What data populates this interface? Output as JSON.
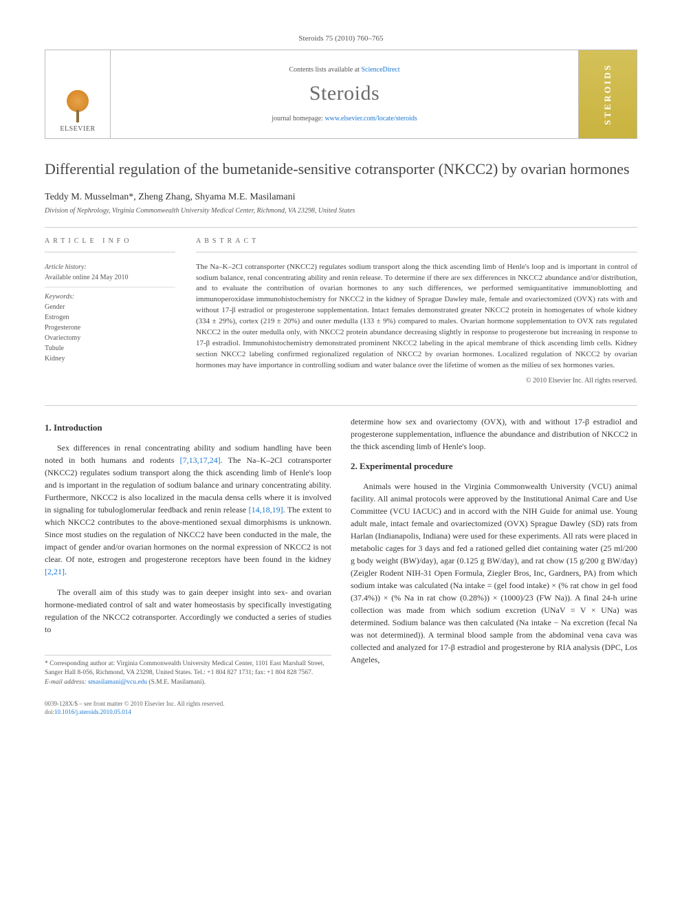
{
  "journal_ref": "Steroids 75 (2010) 760–765",
  "header": {
    "publisher": "ELSEVIER",
    "contents_prefix": "Contents lists available at ",
    "contents_link": "ScienceDirect",
    "journal_name": "Steroids",
    "homepage_prefix": "journal homepage: ",
    "homepage_url": "www.elsevier.com/locate/steroids",
    "cover_text": "STEROIDS"
  },
  "title": "Differential regulation of the bumetanide-sensitive cotransporter (NKCC2) by ovarian hormones",
  "authors": "Teddy M. Musselman*, Zheng Zhang, Shyama M.E. Masilamani",
  "affiliation": "Division of Nephrology, Virginia Commonwealth University Medical Center, Richmond, VA 23298, United States",
  "article_info": {
    "label": "ARTICLE INFO",
    "history_label": "Article history:",
    "history_text": "Available online 24 May 2010",
    "keywords_label": "Keywords:",
    "keywords": [
      "Gender",
      "Estrogen",
      "Progesterone",
      "Ovariectomy",
      "Tubule",
      "Kidney"
    ]
  },
  "abstract": {
    "label": "ABSTRACT",
    "text": "The Na–K–2Cl cotransporter (NKCC2) regulates sodium transport along the thick ascending limb of Henle's loop and is important in control of sodium balance, renal concentrating ability and renin release. To determine if there are sex differences in NKCC2 abundance and/or distribution, and to evaluate the contribution of ovarian hormones to any such differences, we performed semiquantitative immunoblotting and immunoperoxidase immunohistochemistry for NKCC2 in the kidney of Sprague Dawley male, female and ovariectomized (OVX) rats with and without 17-β estradiol or progesterone supplementation. Intact females demonstrated greater NKCC2 protein in homogenates of whole kidney (334 ± 29%), cortex (219 ± 20%) and outer medulla (133 ± 9%) compared to males. Ovarian hormone supplementation to OVX rats regulated NKCC2 in the outer medulla only, with NKCC2 protein abundance decreasing slightly in response to progesterone but increasing in response to 17-β estradiol. Immunohistochemistry demonstrated prominent NKCC2 labeling in the apical membrane of thick ascending limb cells. Kidney section NKCC2 labeling confirmed regionalized regulation of NKCC2 by ovarian hormones. Localized regulation of NKCC2 by ovarian hormones may have importance in controlling sodium and water balance over the lifetime of women as the milieu of sex hormones varies.",
    "copyright": "© 2010 Elsevier Inc. All rights reserved."
  },
  "body": {
    "intro_heading": "1. Introduction",
    "intro_p1_a": "Sex differences in renal concentrating ability and sodium handling have been noted in both humans and rodents ",
    "intro_p1_cite1": "[7,13,17,24]",
    "intro_p1_b": ". The Na–K–2Cl cotransporter (NKCC2) regulates sodium transport along the thick ascending limb of Henle's loop and is important in the regulation of sodium balance and urinary concentrating ability. Furthermore, NKCC2 is also localized in the macula densa cells where it is involved in signaling for tubuloglomerular feedback and renin release ",
    "intro_p1_cite2": "[14,18,19]",
    "intro_p1_c": ". The extent to which NKCC2 contributes to the above-mentioned sexual dimorphisms is unknown. Since most studies on the regulation of NKCC2 have been conducted in the male, the impact of gender and/or ovarian hormones on the normal expression of NKCC2 is not clear. Of note, estrogen and progesterone receptors have been found in the kidney ",
    "intro_p1_cite3": "[2,21]",
    "intro_p1_d": ".",
    "intro_p2": "The overall aim of this study was to gain deeper insight into sex- and ovarian hormone-mediated control of salt and water homeostasis by specifically investigating regulation of the NKCC2 cotransporter. Accordingly we conducted a series of studies to",
    "col2_p1": "determine how sex and ovariectomy (OVX), with and without 17-β estradiol and progesterone supplementation, influence the abundance and distribution of NKCC2 in the thick ascending limb of Henle's loop.",
    "exp_heading": "2. Experimental procedure",
    "exp_p1": "Animals were housed in the Virginia Commonwealth University (VCU) animal facility. All animal protocols were approved by the Institutional Animal Care and Use Committee (VCU IACUC) and in accord with the NIH Guide for animal use. Young adult male, intact female and ovariectomized (OVX) Sprague Dawley (SD) rats from Harlan (Indianapolis, Indiana) were used for these experiments. All rats were placed in metabolic cages for 3 days and fed a rationed gelled diet containing water (25 ml/200 g body weight (BW)/day), agar (0.125 g BW/day), and rat chow (15 g/200 g BW/day) (Zeigler Rodent NIH-31 Open Formula, Ziegler Bros, Inc, Gardners, PA) from which sodium intake was calculated (Na intake = (gel food intake) × (% rat chow in gel food (37.4%)) × (% Na in rat chow (0.28%)) × (1000)/23 (FW Na)). A final 24-h urine collection was made from which sodium excretion (UNaV = V × UNa) was determined. Sodium balance was then calculated (Na intake − Na excretion (fecal Na was not determined)). A terminal blood sample from the abdominal vena cava was collected and analyzed for 17-β estradiol and progesterone by RIA analysis (DPC, Los Angeles,"
  },
  "footnotes": {
    "corr_label": "* Corresponding author at: ",
    "corr_text": "Virginia Commonwealth University Medical Center, 1101 East Marshall Street, Sanger Hall 8-056, Richmond, VA 23298, United States. Tel.: +1 804 827 1731; fax: +1 804 828 7567.",
    "email_label": "E-mail address: ",
    "email": "smasilamani@vcu.edu",
    "email_suffix": " (S.M.E. Masilamani)."
  },
  "footer": {
    "issn": "0039-128X/$ – see front matter © 2010 Elsevier Inc. All rights reserved.",
    "doi_label": "doi:",
    "doi": "10.1016/j.steroids.2010.05.014"
  },
  "colors": {
    "link": "#1976d2",
    "text": "#333333",
    "muted": "#555555",
    "border": "#cccccc",
    "cover_bg": "#c9b33f"
  }
}
